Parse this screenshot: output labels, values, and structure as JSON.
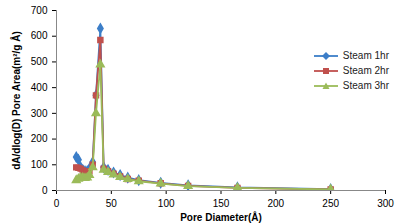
{
  "chart_data": {
    "type": "line",
    "x_label": "Pore Diameter(Å)",
    "y_label": "dA/dlog(D) Pore Area(m²/g Å)",
    "x": [
      18,
      20,
      22,
      24,
      26,
      28,
      30,
      33,
      36,
      40,
      43,
      47,
      52,
      58,
      65,
      75,
      95,
      120,
      165,
      250
    ],
    "series": [
      {
        "name": "Steam 1hr",
        "color": "#3c7ec8",
        "marker": "diamond",
        "line_style": "solid",
        "values": [
          130,
          120,
          90,
          80,
          75,
          75,
          85,
          110,
          370,
          630,
          90,
          80,
          70,
          60,
          50,
          40,
          30,
          20,
          12,
          5
        ]
      },
      {
        "name": "Steam 2hr",
        "color": "#c0504d",
        "marker": "square",
        "line_style": "solid",
        "values": [
          90,
          88,
          85,
          78,
          70,
          68,
          75,
          100,
          370,
          585,
          85,
          75,
          65,
          55,
          45,
          38,
          28,
          18,
          10,
          4
        ]
      },
      {
        "name": "Steam 3hr",
        "color": "#9bbb59",
        "marker": "triangle",
        "line_style": "solid",
        "values": [
          40,
          45,
          50,
          50,
          48,
          50,
          60,
          90,
          300,
          490,
          80,
          72,
          62,
          52,
          44,
          36,
          27,
          17,
          10,
          4
        ]
      }
    ],
    "xlim": [
      0,
      300
    ],
    "xticks": [
      0,
      50,
      100,
      150,
      200,
      250,
      300
    ],
    "ylim": [
      0,
      700
    ],
    "yticks": [
      0,
      100,
      200,
      300,
      400,
      500,
      600,
      700
    ],
    "grid": false,
    "legend": "right"
  }
}
